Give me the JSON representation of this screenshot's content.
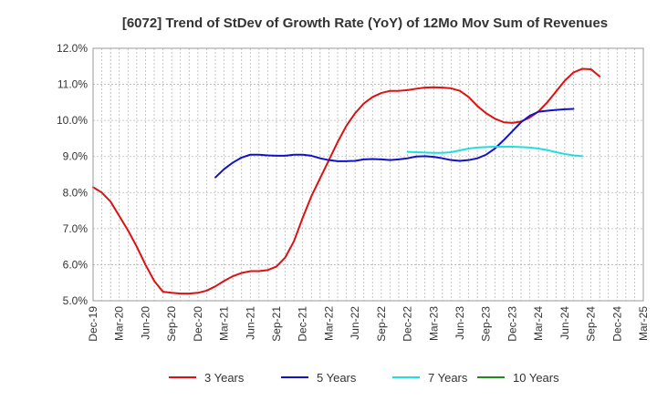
{
  "chart_data": {
    "type": "line",
    "title": "[6072]  Trend of StDev of Growth Rate (YoY) of 12Mo Mov Sum of Revenues",
    "xlabel": "",
    "ylabel": "",
    "ylim": [
      5.0,
      12.0
    ],
    "y_ticks": [
      "5.0%",
      "6.0%",
      "7.0%",
      "8.0%",
      "9.0%",
      "10.0%",
      "11.0%",
      "12.0%"
    ],
    "x_ticks": [
      "Dec-19",
      "Mar-20",
      "Jun-20",
      "Sep-20",
      "Dec-20",
      "Mar-21",
      "Jun-21",
      "Sep-21",
      "Dec-21",
      "Mar-22",
      "Jun-22",
      "Sep-22",
      "Dec-22",
      "Mar-23",
      "Jun-23",
      "Sep-23",
      "Dec-23",
      "Mar-24",
      "Jun-24",
      "Sep-24",
      "Dec-24",
      "Mar-25"
    ],
    "grid": true,
    "legend_position": "bottom",
    "series": [
      {
        "name": "3 Years",
        "color": "#dd1111",
        "start_index": 0,
        "values": [
          8.15,
          8.0,
          7.75,
          7.35,
          6.95,
          6.5,
          6.0,
          5.55,
          5.25,
          5.22,
          5.2,
          5.2,
          5.22,
          5.28,
          5.4,
          5.55,
          5.68,
          5.77,
          5.82,
          5.82,
          5.85,
          5.95,
          6.2,
          6.65,
          7.3,
          7.9,
          8.4,
          8.9,
          9.4,
          9.85,
          10.2,
          10.47,
          10.65,
          10.76,
          10.82,
          10.82,
          10.84,
          10.88,
          10.91,
          10.92,
          10.91,
          10.89,
          10.82,
          10.65,
          10.4,
          10.2,
          10.05,
          9.95,
          9.93,
          9.97,
          10.08,
          10.25,
          10.5,
          10.8,
          11.1,
          11.33,
          11.43,
          11.42,
          11.22
        ]
      },
      {
        "name": "5 Years",
        "color": "#1111cc",
        "start_index": 14,
        "values": [
          8.42,
          8.65,
          8.83,
          8.97,
          9.05,
          9.05,
          9.03,
          9.02,
          9.02,
          9.05,
          9.05,
          9.02,
          8.95,
          8.9,
          8.87,
          8.87,
          8.88,
          8.92,
          8.93,
          8.92,
          8.9,
          8.92,
          8.95,
          9.0,
          9.01,
          8.99,
          8.95,
          8.9,
          8.88,
          8.9,
          8.95,
          9.05,
          9.22,
          9.45,
          9.7,
          9.95,
          10.13,
          10.24,
          10.27,
          10.29,
          10.31,
          10.32
        ]
      },
      {
        "name": "7 Years",
        "color": "#22dddd",
        "start_index": 36,
        "values": [
          9.13,
          9.12,
          9.11,
          9.1,
          9.1,
          9.12,
          9.17,
          9.22,
          9.25,
          9.26,
          9.27,
          9.27,
          9.27,
          9.26,
          9.25,
          9.22,
          9.18,
          9.12,
          9.07,
          9.03,
          9.01
        ]
      },
      {
        "name": "10 Years",
        "color": "#228822",
        "start_index": 0,
        "values": []
      }
    ]
  }
}
